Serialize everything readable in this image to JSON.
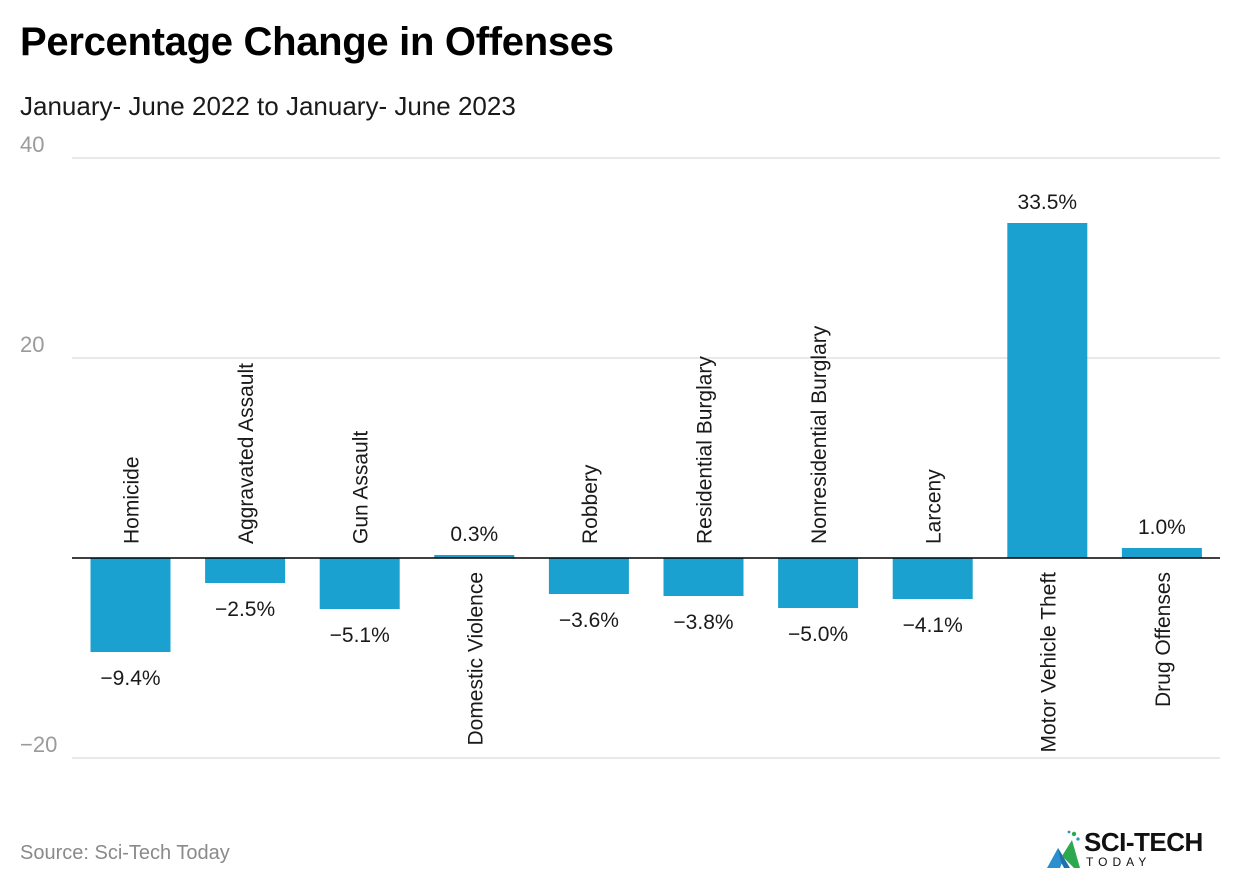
{
  "title": "Percentage Change in Offenses",
  "subtitle": "January- June 2022 to January- June 2023",
  "source": "Source: Sci-Tech Today",
  "logo": {
    "main": "SCI-TECH",
    "sub": "TODAY"
  },
  "colors": {
    "bar": "#1ba1d0",
    "grid": "#e2e2e2",
    "axis": "#000000",
    "tick_label": "#9a9a9a",
    "text": "#1a1a1a"
  },
  "chart_data": {
    "type": "bar",
    "categories": [
      "Homicide",
      "Aggravated Assault",
      "Gun Assault",
      "Domestic Violence",
      "Robbery",
      "Residential Burglary",
      "Nonresidential Burglary",
      "Larceny",
      "Motor Vehicle Theft",
      "Drug Offenses"
    ],
    "values": [
      -9.4,
      -2.5,
      -5.1,
      0.3,
      -3.6,
      -3.8,
      -5.0,
      -4.1,
      33.5,
      1.0
    ],
    "value_labels": [
      "−9.4%",
      "−2.5%",
      "−5.1%",
      "0.3%",
      "−3.6%",
      "−3.8%",
      "−5.0%",
      "−4.1%",
      "33.5%",
      "1.0%"
    ],
    "yticks": [
      40,
      20,
      -20
    ],
    "ytick_labels": [
      "40",
      "20",
      "−20"
    ],
    "ylim": [
      -20,
      40
    ],
    "xlabel": "",
    "ylabel": "",
    "grid": true
  }
}
